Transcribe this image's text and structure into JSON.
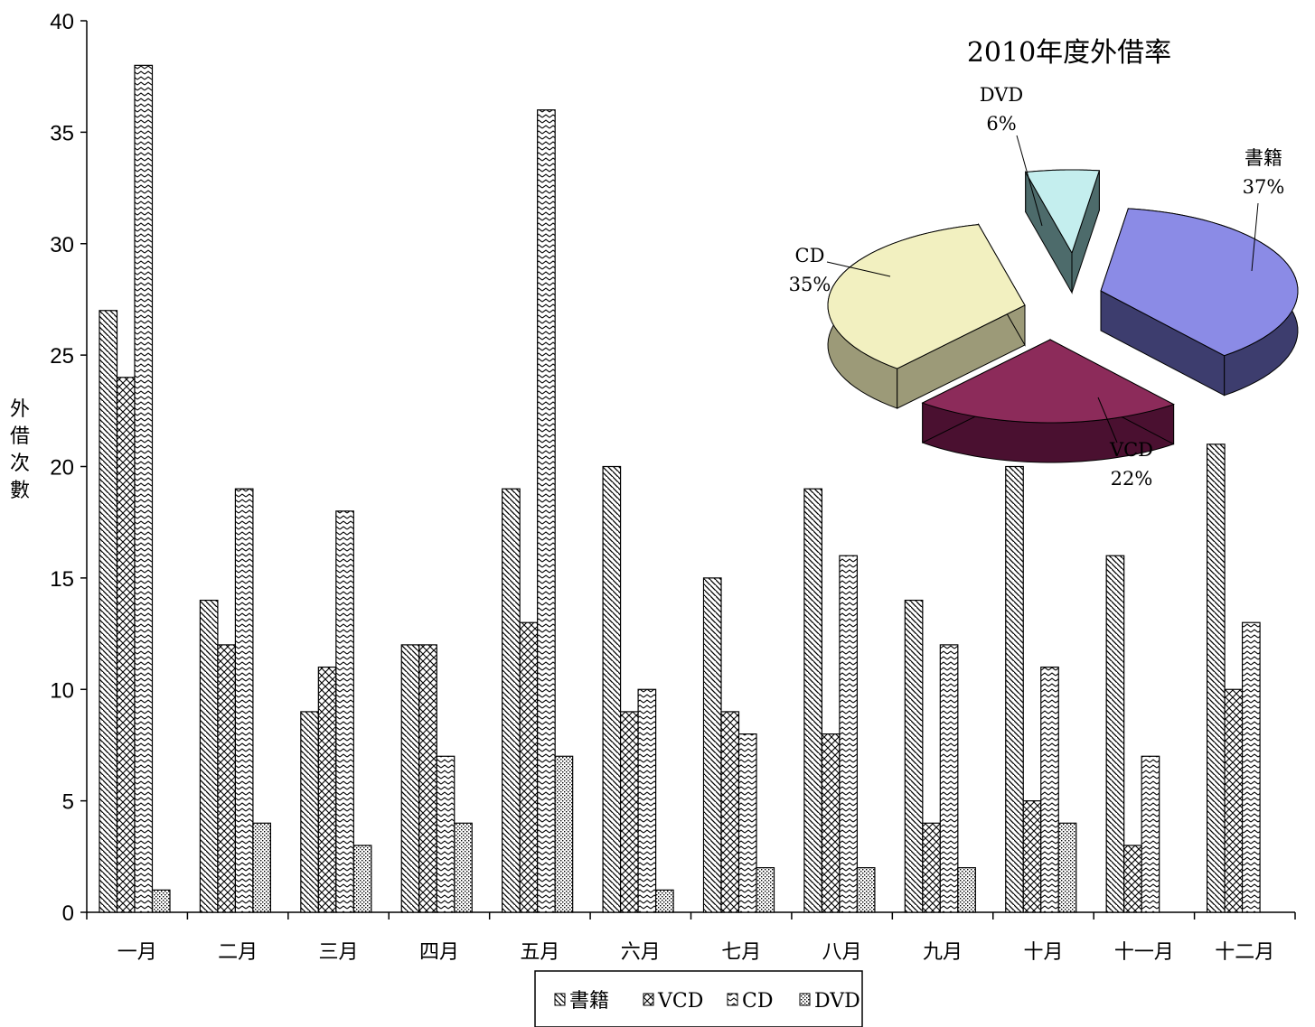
{
  "chart_data": [
    {
      "type": "bar",
      "ylabel": "外借次數",
      "ylim": [
        0,
        40
      ],
      "yticks": [
        0,
        5,
        10,
        15,
        20,
        25,
        30,
        35,
        40
      ],
      "categories": [
        "一月",
        "二月",
        "三月",
        "四月",
        "五月",
        "六月",
        "七月",
        "八月",
        "九月",
        "十月",
        "十一月",
        "十二月"
      ],
      "series": [
        {
          "name": "書籍",
          "pattern": "diag-back",
          "values": [
            27,
            14,
            9,
            12,
            19,
            20,
            15,
            19,
            14,
            20,
            16,
            21
          ]
        },
        {
          "name": "VCD",
          "pattern": "cross",
          "values": [
            24,
            12,
            11,
            12,
            13,
            9,
            9,
            8,
            4,
            5,
            3,
            10
          ]
        },
        {
          "name": "CD",
          "pattern": "zigzag",
          "values": [
            38,
            19,
            18,
            7,
            36,
            10,
            8,
            16,
            12,
            11,
            7,
            13
          ]
        },
        {
          "name": "DVD",
          "pattern": "dots",
          "values": [
            1,
            4,
            3,
            4,
            7,
            1,
            2,
            2,
            2,
            4,
            null,
            null
          ]
        }
      ],
      "legend": "bottom",
      "grid": false
    },
    {
      "type": "pie",
      "title": "2010年度外借率",
      "slices": [
        {
          "name": "書籍",
          "pct_label": "37%",
          "value": 37,
          "color": "#8b8be6",
          "side_color": "#3d3d6e"
        },
        {
          "name": "VCD",
          "pct_label": "22%",
          "value": 22,
          "color": "#8c2b5a",
          "side_color": "#4a1030"
        },
        {
          "name": "CD",
          "pct_label": "35%",
          "value": 35,
          "color": "#f2f0c0",
          "side_color": "#9c9a78"
        },
        {
          "name": "DVD",
          "pct_label": "6%",
          "value": 6,
          "color": "#c4eeee",
          "side_color": "#4d6b6b"
        }
      ]
    }
  ]
}
